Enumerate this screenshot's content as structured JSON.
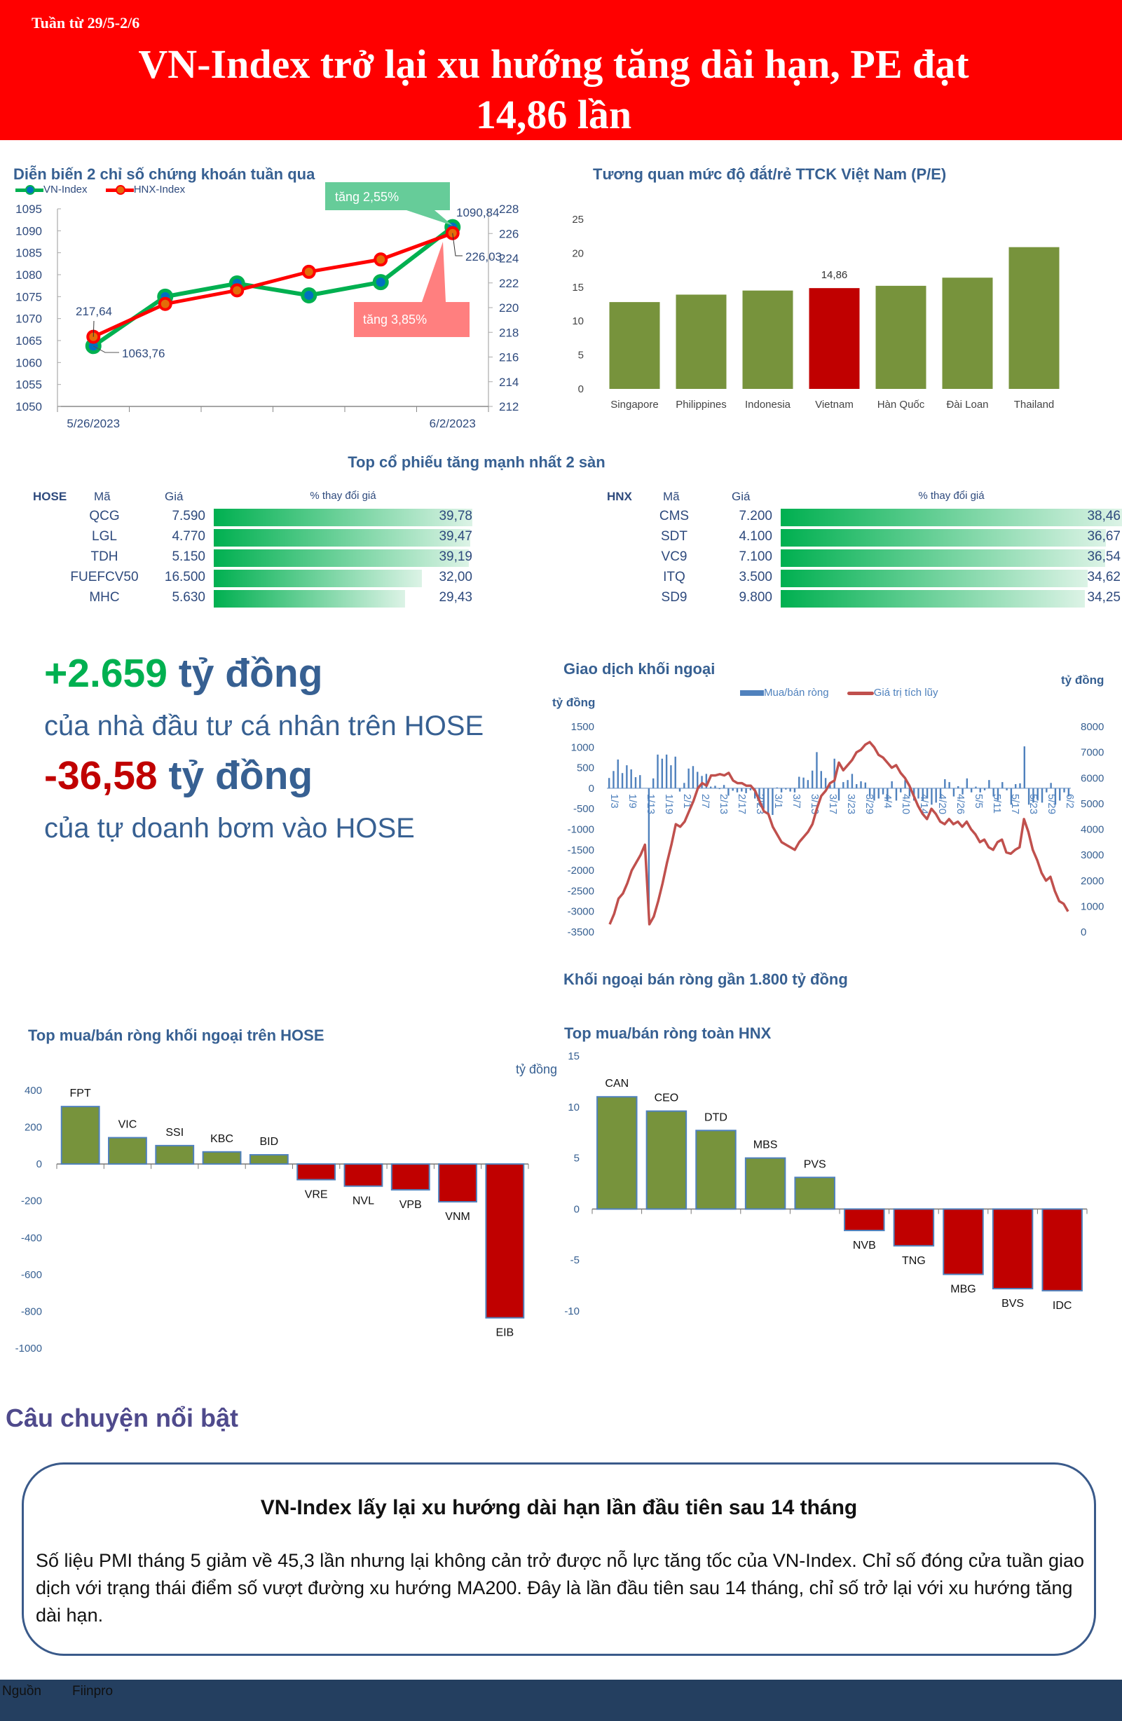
{
  "header": {
    "week": "Tuần từ 29/5-2/6",
    "title_line1": "VN-Index trở lại xu hướng tăng dài hạn, PE đạt",
    "title_line2": "14,86 lần"
  },
  "colors": {
    "header_bg": "#ff0000",
    "title_blue": "#376092",
    "green": "#00b050",
    "red": "#c00000",
    "olive": "#77933c",
    "bar_blue": "#4f81bd",
    "line_red": "#c0504d",
    "footer": "#243f60"
  },
  "top_stocks": {
    "title": "Top cổ phiếu tăng mạnh nhất 2 sàn",
    "hose": {
      "exchange": "HOSE",
      "col_code": "Mã",
      "col_price": "Giá",
      "col_change": "% thay đổi giá",
      "rows": [
        {
          "code": "QCG",
          "price": "7.590",
          "change": "39,78",
          "value": 39.78
        },
        {
          "code": "LGL",
          "price": "4.770",
          "change": "39,47",
          "value": 39.47
        },
        {
          "code": "TDH",
          "price": "5.150",
          "change": "39,19",
          "value": 39.19
        },
        {
          "code": "FUEFCV50",
          "price": "16.500",
          "change": "32,00",
          "value": 32.0
        },
        {
          "code": "MHC",
          "price": "5.630",
          "change": "29,43",
          "value": 29.43
        }
      ]
    },
    "hnx": {
      "exchange": "HNX",
      "col_code": "Mã",
      "col_price": "Giá",
      "col_change": "% thay đổi giá",
      "rows": [
        {
          "code": "CMS",
          "price": "7.200",
          "change": "38,46",
          "value": 38.46
        },
        {
          "code": "SDT",
          "price": "4.100",
          "change": "36,67",
          "value": 36.67
        },
        {
          "code": "VC9",
          "price": "7.100",
          "change": "36,54",
          "value": 36.54
        },
        {
          "code": "ITQ",
          "price": "3.500",
          "change": "34,62",
          "value": 34.62
        },
        {
          "code": "SD9",
          "price": "9.800",
          "change": "34,25",
          "value": 34.25
        }
      ]
    }
  },
  "highlights": {
    "individual_value": "+2.659",
    "individual_unit": " tỷ đồng",
    "individual_desc": "của nhà đầu tư cá nhân trên HOSE",
    "proprietary_value": "-36,58",
    "proprietary_unit": " tỷ đồng",
    "proprietary_desc": "của tự doanh bơm vào HOSE"
  },
  "story": {
    "section_title": "Câu chuyện nổi bật",
    "title": "VN-Index lấy lại xu hướng dài hạn lần đầu tiên sau 14 tháng",
    "body": "Số liệu PMI tháng 5 giảm về 45,3 lần nhưng lại không cản trở được nỗ lực tăng tốc của VN-Index. Chỉ số đóng cửa tuần giao dịch với trạng thái điểm số vượt đường xu hướng MA200. Đây là lần đầu tiên sau 14 tháng, chỉ số trở lại với xu hướng tăng dài hạn."
  },
  "footer": {
    "source_label": "Nguồn",
    "source": "Fiinpro"
  },
  "chart_data": [
    {
      "type": "line",
      "title": "Diễn biến 2 chỉ số chứng khoán tuần qua",
      "categories": [
        "5/26/2023",
        "",
        "",
        "",
        "",
        "6/2/2023"
      ],
      "series": [
        {
          "name": "VN-Index",
          "axis": "left",
          "values": [
            1063.76,
            1075.0,
            1078.0,
            1075.3,
            1078.3,
            1090.84
          ]
        },
        {
          "name": "HNX-Index",
          "axis": "right",
          "values": [
            217.64,
            220.3,
            221.4,
            222.9,
            223.9,
            226.03
          ]
        }
      ],
      "y_left": {
        "min": 1050,
        "max": 1095,
        "step": 5
      },
      "y_right": {
        "min": 212,
        "max": 228,
        "step": 2
      },
      "data_labels": {
        "vn_first": "1063,76",
        "vn_last": "1090,84",
        "hnx_first": "217,64",
        "hnx_last": "226,03"
      },
      "annotations": [
        {
          "text": "tăng 2,55%",
          "color": "#66cc99"
        },
        {
          "text": "tăng 3,85%",
          "color": "#ff7f7f"
        }
      ],
      "legend": "top-left"
    },
    {
      "type": "bar",
      "title": "Tương quan mức độ đắt/rẻ TTCK Việt Nam (P/E)",
      "categories": [
        "Singapore",
        "Philippines",
        "Indonesia",
        "Vietnam",
        "Hàn Quốc",
        "Đài Loan",
        "Thailand"
      ],
      "values": [
        12.8,
        13.9,
        14.5,
        14.86,
        15.2,
        16.4,
        20.9
      ],
      "highlight": "Vietnam",
      "value_label": "14,86",
      "ylim": [
        0,
        25
      ],
      "ystep": 5
    },
    {
      "type": "bar+line",
      "title": "Giao dịch khối ngoại",
      "caption": "Khối ngoại bán ròng gần 1.800 tỷ đồng",
      "ylabel_left": "tỷ đồng",
      "ylabel_right": "tỷ đồng",
      "x_labels": [
        "1/3",
        "1/9",
        "1/13",
        "1/19",
        "2/1",
        "2/7",
        "2/13",
        "2/17",
        "2/23",
        "3/1",
        "3/7",
        "3/13",
        "3/17",
        "3/23",
        "3/29",
        "4/4",
        "4/10",
        "4/14",
        "4/20",
        "4/26",
        "5/5",
        "5/11",
        "5/17",
        "5/23",
        "5/29",
        "6/2"
      ],
      "y_left": {
        "min": -3500,
        "max": 1500,
        "step": 500
      },
      "y_right": {
        "min": 0,
        "max": 8000,
        "step": 1000
      },
      "series": [
        {
          "name": "Mua/bán ròng",
          "type": "bar",
          "axis": "left",
          "values": [
            250,
            420,
            700,
            370,
            560,
            460,
            270,
            320,
            0,
            -3200,
            240,
            820,
            720,
            820,
            560,
            770,
            -80,
            130,
            480,
            540,
            400,
            300,
            350,
            40,
            60,
            -20,
            80,
            -180,
            -60,
            -100,
            -80,
            -120,
            -50,
            -250,
            -400,
            -500,
            -600,
            -650,
            20,
            -100,
            -30,
            -80,
            -100,
            280,
            260,
            200,
            430,
            880,
            420,
            250,
            80,
            720,
            -300,
            150,
            200,
            350,
            100,
            170,
            140,
            -200,
            -300,
            -250,
            -150,
            -300,
            170,
            -300,
            -100,
            200,
            -200,
            -300,
            -250,
            -300,
            -250,
            -400,
            -350,
            -250,
            220,
            150,
            -200,
            50,
            -150,
            240,
            -100,
            40,
            -100,
            -50,
            200,
            -200,
            -300,
            150,
            -50,
            -400,
            100,
            120,
            1020,
            -400,
            -350,
            -300,
            -350,
            -100,
            130,
            -400,
            -300,
            -100,
            -200
          ]
        },
        {
          "name": "Giá trị tích lũy",
          "type": "line",
          "axis": "right",
          "values": [
            300,
            700,
            1300,
            1500,
            1900,
            2400,
            2700,
            3000,
            3400,
            300,
            600,
            1200,
            1900,
            2700,
            3400,
            4200,
            4100,
            4300,
            4700,
            5100,
            5600,
            5800,
            5700,
            6100,
            6100,
            6150,
            6100,
            6200,
            5900,
            5800,
            5800,
            5700,
            5700,
            5500,
            5100,
            4700,
            4600,
            4100,
            3800,
            3500,
            3400,
            3300,
            3200,
            3500,
            3700,
            3900,
            4200,
            4800,
            5300,
            5500,
            5800,
            5900,
            6600,
            6300,
            6500,
            6700,
            7000,
            7100,
            7300,
            7400,
            7200,
            6900,
            6800,
            6600,
            6400,
            6500,
            6200,
            6000,
            5700,
            5300,
            4900,
            4600,
            4400,
            4800,
            4600,
            4300,
            4200,
            4400,
            4200,
            4300,
            4100,
            4300,
            4000,
            3800,
            3500,
            3600,
            3300,
            3200,
            3500,
            3600,
            3100,
            3050,
            3200,
            3300,
            4400,
            3900,
            3200,
            2800,
            2300,
            2000,
            2150,
            1600,
            1200,
            1100,
            800
          ]
        }
      ],
      "legend": "top-center"
    },
    {
      "type": "bar",
      "title": "Top mua/bán ròng khối ngoại trên HOSE",
      "categories": [
        "FPT",
        "VIC",
        "SSI",
        "KBC",
        "BID",
        "VRE",
        "NVL",
        "VPB",
        "VNM",
        "EIB"
      ],
      "values": [
        312,
        143,
        100,
        66,
        50,
        -85,
        -120,
        -140,
        -205,
        -835
      ],
      "ylim": [
        -1000,
        400
      ],
      "ystep": 200
    },
    {
      "type": "bar",
      "title": "Top mua/bán ròng toàn HNX",
      "ylabel": "tỷ đồng",
      "categories": [
        "CAN",
        "CEO",
        "DTD",
        "MBS",
        "PVS",
        "NVB",
        "TNG",
        "MBG",
        "BVS",
        "IDC"
      ],
      "values": [
        11.0,
        9.6,
        7.7,
        5.0,
        3.1,
        -2.1,
        -3.6,
        -6.4,
        -7.8,
        -8.0
      ],
      "ylim": [
        -10,
        15
      ],
      "ystep": 5
    }
  ]
}
